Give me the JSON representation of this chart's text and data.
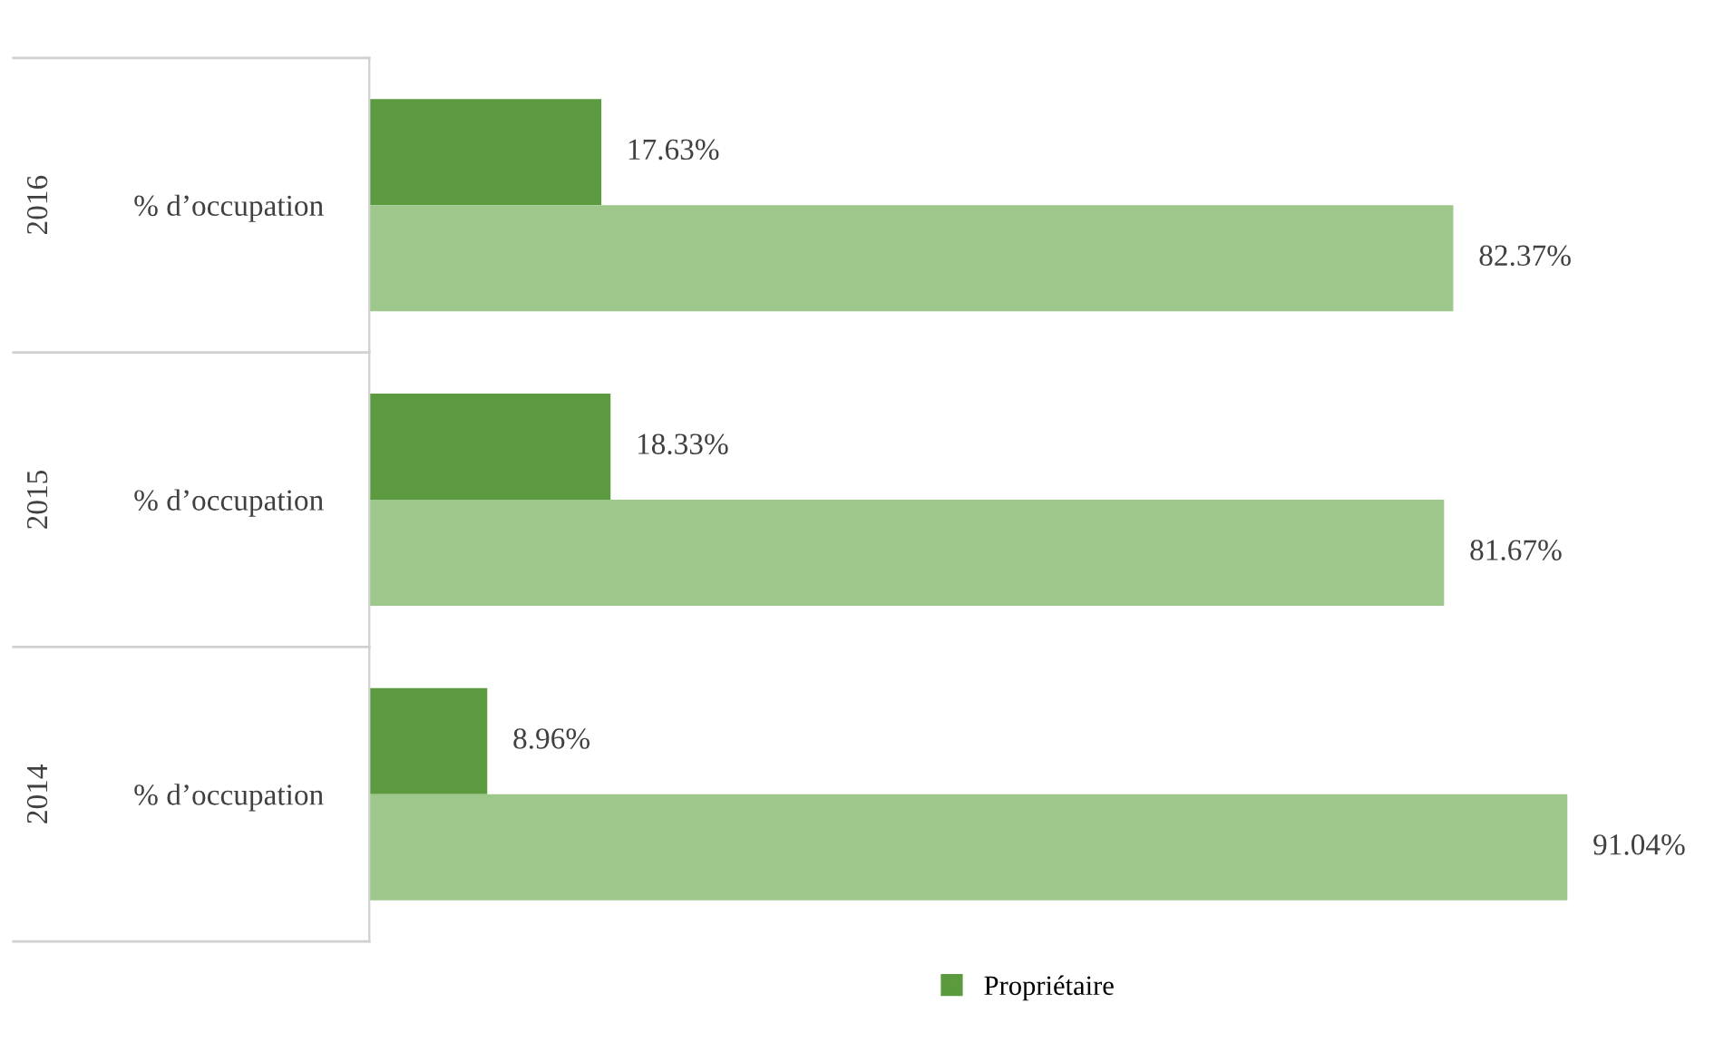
{
  "chart_data": {
    "type": "bar",
    "orientation": "horizontal",
    "categories": [
      "% d’occupation",
      "% d’occupation",
      "% d’occupation"
    ],
    "annotations": [
      "2016",
      "2015",
      "2014"
    ],
    "series": [
      {
        "name": "Propriétaire",
        "color": "#5b9a3e",
        "values": [
          17.63,
          18.33,
          8.96
        ],
        "value_labels": [
          "17.63%",
          "18.33%",
          "8.96%"
        ]
      },
      {
        "color": "#9dc78b",
        "values": [
          82.37,
          81.67,
          91.04
        ],
        "value_labels": [
          "82.37%",
          "81.67%",
          "91.04%"
        ]
      }
    ],
    "legend": "bottom",
    "grid": false
  }
}
